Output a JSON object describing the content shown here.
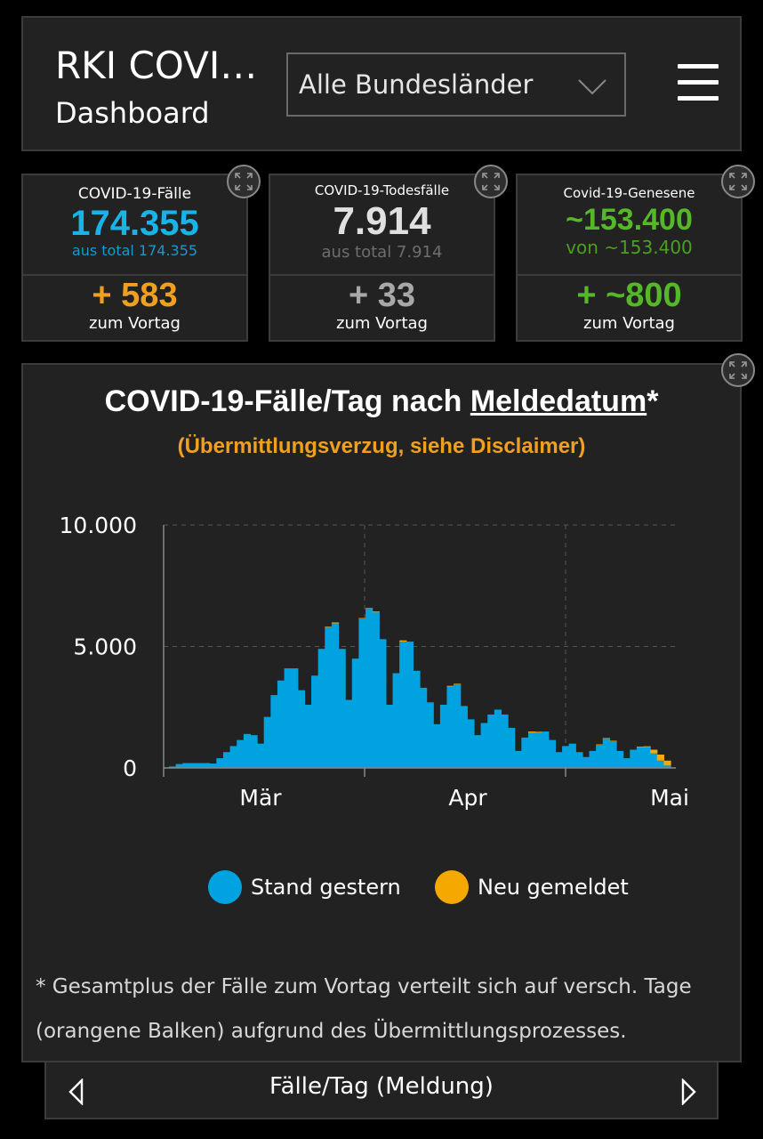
{
  "header": {
    "title": "RKI COVI…",
    "subtitle": "Dashboard",
    "region_select": {
      "selected": "Alle Bundesländer"
    },
    "menu_icon": "hamburger-menu-icon"
  },
  "cards": [
    {
      "label": "COVID-19-Fälle",
      "value": "174.355",
      "total": "aus total 174.355",
      "delta": "+ 583",
      "delta_label": "zum Vortag",
      "value_color": "#18b4e8",
      "total_color": "#1898cc",
      "delta_color": "#f0a020"
    },
    {
      "label": "COVID-19-Todesfälle",
      "value": "7.914",
      "total": "aus total 7.914",
      "delta": "+ 33",
      "delta_label": "zum Vortag",
      "value_color": "#e0e0e0",
      "total_color": "#6e6e6e",
      "delta_color": "#a8a8a8"
    },
    {
      "label": "Covid-19-Genesene",
      "value": "~153.400",
      "total": "von ~153.400",
      "delta": "+ ~800",
      "delta_label": "zum Vortag",
      "value_color": "#56b828",
      "total_color": "#4aa020",
      "delta_color": "#56b828"
    }
  ],
  "chart_panel": {
    "title_prefix": "COVID-19-Fälle/Tag nach ",
    "title_link": "Meldedatum",
    "title_suffix": "*",
    "subtitle": "(Übermittlungsverzug, siehe Disclaimer)",
    "footnote_line1": "* Gesamtplus der Fälle zum Vortag verteilt sich auf versch. Tage",
    "footnote_line2": "(orangene Balken) aufgrund des Übermittlungsprozesses."
  },
  "chart_data": {
    "type": "bar",
    "stacked": true,
    "xlabels": [
      "Mär",
      "Apr",
      "Mai"
    ],
    "ylabels": [
      "10.000",
      "5.000",
      "0"
    ],
    "ylim": [
      0,
      10000
    ],
    "grid": true,
    "legend_position": "bottom",
    "series": [
      {
        "name": "Stand gestern",
        "color": "#00a3e0",
        "values": [
          60,
          160,
          200,
          200,
          200,
          200,
          180,
          400,
          650,
          900,
          1150,
          1400,
          1350,
          1000,
          2100,
          3000,
          3600,
          4100,
          4100,
          3200,
          2600,
          3800,
          4900,
          5800,
          5950,
          4900,
          2800,
          4500,
          6150,
          6550,
          6400,
          5300,
          2600,
          3900,
          5200,
          5200,
          4000,
          3300,
          2700,
          1800,
          2600,
          3350,
          3450,
          2550,
          2000,
          1350,
          1850,
          2200,
          2400,
          2200,
          1650,
          700,
          1250,
          1450,
          1450,
          1500,
          1150,
          650,
          900,
          1000,
          650,
          450,
          700,
          950,
          1200,
          1100,
          700,
          400,
          750,
          850,
          850,
          600,
          300,
          100
        ]
      },
      {
        "name": "Neu gemeldet",
        "color": "#f5a800",
        "values": [
          0,
          0,
          0,
          0,
          0,
          0,
          0,
          0,
          0,
          0,
          0,
          0,
          0,
          0,
          0,
          0,
          0,
          0,
          0,
          0,
          0,
          0,
          0,
          20,
          40,
          0,
          0,
          0,
          20,
          30,
          40,
          0,
          0,
          0,
          50,
          0,
          0,
          0,
          0,
          0,
          0,
          30,
          20,
          0,
          0,
          0,
          0,
          0,
          0,
          0,
          0,
          0,
          0,
          50,
          40,
          0,
          0,
          0,
          0,
          0,
          0,
          0,
          0,
          20,
          30,
          20,
          0,
          0,
          0,
          30,
          40,
          150,
          250,
          200
        ]
      }
    ]
  },
  "legend": {
    "item1": "Stand gestern",
    "item2": "Neu gemeldet"
  },
  "bottom_nav": {
    "label": "Fälle/Tag (Meldung)"
  }
}
